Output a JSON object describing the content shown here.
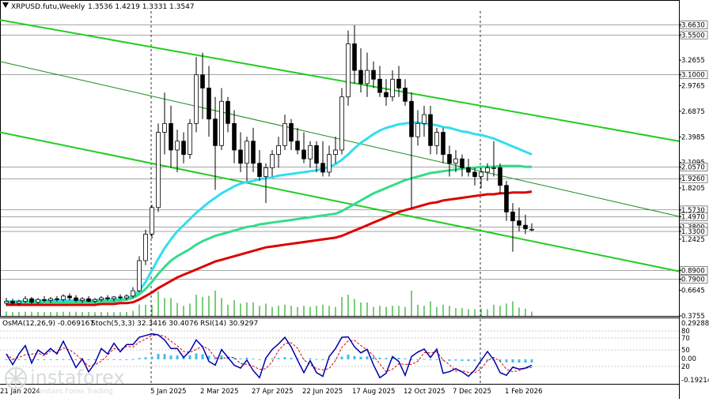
{
  "header": {
    "symbol": "XRPUSD.futu,Weekly",
    "ohlc": "1.3536 1.4219 1.3331 1.3547"
  },
  "indicator_labels": {
    "osma": "OsMA(12,26,9) -0.069167",
    "stoch": "Stoch(5,3,3) 32.3416 30.4076",
    "rsi": "RSI(14) 30.9297"
  },
  "watermark": {
    "brand": "instaforex",
    "tagline": "Instant Forex Trading"
  },
  "colors": {
    "background": "#ffffff",
    "bull_candle": "#ffffff",
    "bear_candle": "#000000",
    "channel_lines": "#22cc22",
    "trend_line": "#1a8a1a",
    "ma_red": "#dd0000",
    "ma_green": "#33dd88",
    "ma_cyan": "#33ddee",
    "volume": "#22aa22",
    "histogram": "#44bbee",
    "stoch_main": "#0000aa",
    "stoch_signal": "#dd0000"
  },
  "chart_data": {
    "type": "candlestick",
    "title": "XRPUSD.futu,Weekly",
    "price_axis_ticks": [
      "3.6630",
      "3.5500",
      "3.2655",
      "3.1000",
      "2.9765",
      "2.6875",
      "2.3985",
      "2.1095",
      "2.0570",
      "1.9260",
      "1.8205",
      "1.5730",
      "1.4970",
      "1.3800",
      "1.3300",
      "1.2425",
      "0.8900",
      "0.7900",
      "0.6645",
      "0.3755"
    ],
    "highlighted_levels": [
      "3.6630",
      "3.5500",
      "3.1000",
      "2.0570",
      "1.9260",
      "1.5730",
      "1.4970",
      "1.3800",
      "1.3300",
      "0.8900",
      "0.7900"
    ],
    "ylim": [
      0.3755,
      3.82
    ],
    "time_axis_labels": [
      "21 Jan 2024",
      "5 Jan 2025",
      "2 Mar 2025",
      "27 Apr 2025",
      "22 Jun 2025",
      "17 Aug 2025",
      "12 Oct 2025",
      "7 Dec 2025",
      "1 Feb 2026"
    ],
    "last_values": {
      "open": 1.3536,
      "high": 1.4219,
      "low": 1.3331,
      "close": 1.3547
    },
    "candles": [
      [
        0.52,
        0.58,
        0.49,
        0.54
      ],
      [
        0.54,
        0.57,
        0.5,
        0.52
      ],
      [
        0.52,
        0.56,
        0.49,
        0.54
      ],
      [
        0.54,
        0.6,
        0.52,
        0.57
      ],
      [
        0.57,
        0.59,
        0.51,
        0.53
      ],
      [
        0.53,
        0.58,
        0.51,
        0.56
      ],
      [
        0.56,
        0.6,
        0.53,
        0.55
      ],
      [
        0.55,
        0.59,
        0.52,
        0.57
      ],
      [
        0.57,
        0.6,
        0.54,
        0.56
      ],
      [
        0.56,
        0.62,
        0.54,
        0.6
      ],
      [
        0.6,
        0.63,
        0.55,
        0.58
      ],
      [
        0.58,
        0.61,
        0.53,
        0.55
      ],
      [
        0.55,
        0.59,
        0.52,
        0.57
      ],
      [
        0.57,
        0.6,
        0.53,
        0.54
      ],
      [
        0.54,
        0.58,
        0.52,
        0.56
      ],
      [
        0.56,
        0.6,
        0.54,
        0.58
      ],
      [
        0.58,
        0.61,
        0.55,
        0.57
      ],
      [
        0.57,
        0.6,
        0.54,
        0.59
      ],
      [
        0.59,
        0.62,
        0.56,
        0.58
      ],
      [
        0.58,
        0.62,
        0.55,
        0.6
      ],
      [
        0.6,
        0.7,
        0.58,
        0.66
      ],
      [
        0.66,
        1.05,
        0.64,
        1.0
      ],
      [
        1.0,
        1.35,
        0.95,
        1.3
      ],
      [
        1.3,
        1.63,
        1.25,
        1.6
      ],
      [
        1.6,
        2.55,
        1.55,
        2.45
      ],
      [
        2.45,
        2.9,
        2.2,
        2.55
      ],
      [
        2.55,
        2.75,
        2.05,
        2.25
      ],
      [
        2.25,
        2.48,
        2.0,
        2.35
      ],
      [
        2.35,
        2.45,
        2.1,
        2.2
      ],
      [
        2.2,
        2.6,
        2.15,
        2.55
      ],
      [
        2.55,
        3.3,
        2.45,
        3.1
      ],
      [
        3.1,
        3.35,
        2.6,
        2.95
      ],
      [
        2.95,
        3.2,
        2.4,
        2.6
      ],
      [
        2.6,
        2.85,
        1.8,
        2.3
      ],
      [
        2.3,
        2.95,
        2.25,
        2.8
      ],
      [
        2.8,
        2.85,
        2.45,
        2.55
      ],
      [
        2.55,
        2.7,
        2.1,
        2.25
      ],
      [
        2.25,
        2.45,
        2.0,
        2.1
      ],
      [
        2.1,
        2.4,
        1.9,
        2.35
      ],
      [
        2.35,
        2.5,
        2.0,
        2.1
      ],
      [
        2.1,
        2.25,
        1.9,
        1.95
      ],
      [
        1.95,
        2.1,
        1.65,
        2.05
      ],
      [
        2.05,
        2.25,
        1.95,
        2.2
      ],
      [
        2.2,
        2.4,
        2.05,
        2.3
      ],
      [
        2.3,
        2.65,
        2.25,
        2.55
      ],
      [
        2.55,
        2.6,
        2.25,
        2.35
      ],
      [
        2.35,
        2.5,
        2.2,
        2.25
      ],
      [
        2.25,
        2.45,
        2.1,
        2.15
      ],
      [
        2.15,
        2.35,
        2.05,
        2.3
      ],
      [
        2.3,
        2.35,
        2.0,
        2.1
      ],
      [
        2.1,
        2.35,
        1.95,
        2.0
      ],
      [
        2.0,
        2.3,
        1.95,
        2.2
      ],
      [
        2.2,
        2.4,
        2.1,
        2.25
      ],
      [
        2.25,
        2.95,
        2.2,
        2.85
      ],
      [
        2.85,
        3.6,
        2.75,
        3.45
      ],
      [
        3.45,
        3.66,
        3.0,
        3.15
      ],
      [
        3.15,
        3.4,
        2.9,
        3.0
      ],
      [
        3.0,
        3.35,
        2.85,
        3.15
      ],
      [
        3.15,
        3.25,
        2.95,
        3.05
      ],
      [
        3.05,
        3.2,
        2.85,
        2.9
      ],
      [
        2.9,
        3.05,
        2.75,
        2.85
      ],
      [
        2.85,
        3.15,
        2.8,
        3.05
      ],
      [
        3.05,
        3.2,
        2.85,
        2.95
      ],
      [
        2.95,
        3.05,
        2.75,
        2.8
      ],
      [
        2.8,
        2.9,
        1.6,
        2.4
      ],
      [
        2.4,
        2.7,
        2.3,
        2.55
      ],
      [
        2.55,
        2.75,
        2.4,
        2.65
      ],
      [
        2.65,
        2.75,
        2.2,
        2.3
      ],
      [
        2.3,
        2.5,
        2.2,
        2.45
      ],
      [
        2.45,
        2.5,
        2.1,
        2.2
      ],
      [
        2.2,
        2.3,
        1.95,
        2.1
      ],
      [
        2.1,
        2.25,
        2.0,
        2.15
      ],
      [
        2.15,
        2.2,
        1.95,
        2.05
      ],
      [
        2.05,
        2.15,
        1.95,
        2.0
      ],
      [
        2.0,
        2.05,
        1.85,
        1.95
      ],
      [
        1.95,
        2.05,
        1.82,
        2.0
      ],
      [
        2.0,
        2.1,
        1.9,
        2.05
      ],
      [
        2.05,
        2.35,
        1.95,
        2.05
      ],
      [
        2.05,
        2.1,
        1.75,
        1.85
      ],
      [
        1.85,
        1.9,
        1.45,
        1.55
      ],
      [
        1.55,
        1.65,
        1.1,
        1.45
      ],
      [
        1.45,
        1.6,
        1.33,
        1.4
      ],
      [
        1.4,
        1.52,
        1.3,
        1.36
      ],
      [
        1.3536,
        1.4219,
        1.3331,
        1.3547
      ]
    ],
    "moving_averages": {
      "ma_red": [
        0.5,
        0.5,
        0.5,
        0.5,
        0.5,
        0.5,
        0.5,
        0.5,
        0.5,
        0.5,
        0.5,
        0.5,
        0.5,
        0.5,
        0.5,
        0.51,
        0.51,
        0.51,
        0.52,
        0.52,
        0.53,
        0.56,
        0.6,
        0.64,
        0.69,
        0.73,
        0.77,
        0.81,
        0.84,
        0.87,
        0.9,
        0.93,
        0.96,
        0.99,
        1.01,
        1.03,
        1.05,
        1.07,
        1.09,
        1.11,
        1.13,
        1.15,
        1.16,
        1.17,
        1.18,
        1.19,
        1.2,
        1.21,
        1.22,
        1.23,
        1.24,
        1.25,
        1.26,
        1.28,
        1.31,
        1.34,
        1.37,
        1.4,
        1.43,
        1.46,
        1.49,
        1.52,
        1.55,
        1.57,
        1.59,
        1.61,
        1.63,
        1.65,
        1.66,
        1.68,
        1.69,
        1.7,
        1.71,
        1.72,
        1.73,
        1.74,
        1.75,
        1.75,
        1.76,
        1.76,
        1.77,
        1.77,
        1.77,
        1.78
      ],
      "ma_green": [
        0.52,
        0.52,
        0.52,
        0.52,
        0.52,
        0.52,
        0.53,
        0.53,
        0.53,
        0.53,
        0.53,
        0.53,
        0.53,
        0.53,
        0.53,
        0.54,
        0.54,
        0.54,
        0.55,
        0.56,
        0.58,
        0.62,
        0.68,
        0.76,
        0.85,
        0.93,
        1.0,
        1.05,
        1.09,
        1.13,
        1.18,
        1.22,
        1.25,
        1.28,
        1.3,
        1.32,
        1.34,
        1.36,
        1.38,
        1.39,
        1.41,
        1.42,
        1.43,
        1.44,
        1.45,
        1.46,
        1.47,
        1.48,
        1.49,
        1.5,
        1.51,
        1.52,
        1.53,
        1.56,
        1.6,
        1.64,
        1.68,
        1.72,
        1.76,
        1.79,
        1.82,
        1.85,
        1.88,
        1.91,
        1.93,
        1.95,
        1.97,
        1.99,
        2.0,
        2.01,
        2.02,
        2.03,
        2.04,
        2.05,
        2.05,
        2.06,
        2.06,
        2.06,
        2.07,
        2.07,
        2.07,
        2.07,
        2.06,
        2.06
      ],
      "ma_cyan": [
        0.54,
        0.54,
        0.54,
        0.54,
        0.55,
        0.55,
        0.55,
        0.55,
        0.55,
        0.55,
        0.55,
        0.55,
        0.55,
        0.55,
        0.55,
        0.56,
        0.56,
        0.56,
        0.56,
        0.57,
        0.6,
        0.66,
        0.76,
        0.89,
        1.02,
        1.14,
        1.24,
        1.33,
        1.4,
        1.47,
        1.54,
        1.6,
        1.66,
        1.71,
        1.76,
        1.8,
        1.84,
        1.87,
        1.89,
        1.9,
        1.92,
        1.93,
        1.94,
        1.96,
        1.97,
        1.98,
        1.99,
        2.0,
        2.01,
        2.02,
        2.04,
        2.06,
        2.09,
        2.14,
        2.2,
        2.27,
        2.33,
        2.38,
        2.43,
        2.47,
        2.5,
        2.52,
        2.54,
        2.55,
        2.56,
        2.56,
        2.55,
        2.54,
        2.53,
        2.51,
        2.5,
        2.48,
        2.46,
        2.45,
        2.43,
        2.42,
        2.4,
        2.38,
        2.35,
        2.32,
        2.29,
        2.26,
        2.23,
        2.2
      ]
    },
    "series": [
      {
        "name": "OsMA(12,26,9)",
        "last": -0.069167
      },
      {
        "name": "Stoch(5,3,3)",
        "last": [
          32.3416,
          30.4076
        ]
      },
      {
        "name": "RSI(14)",
        "last": 30.9297
      }
    ],
    "indicator_axis_ticks": [
      "0.29288",
      "80",
      "70",
      "50",
      "20",
      "0.00",
      "-0.19214"
    ]
  }
}
